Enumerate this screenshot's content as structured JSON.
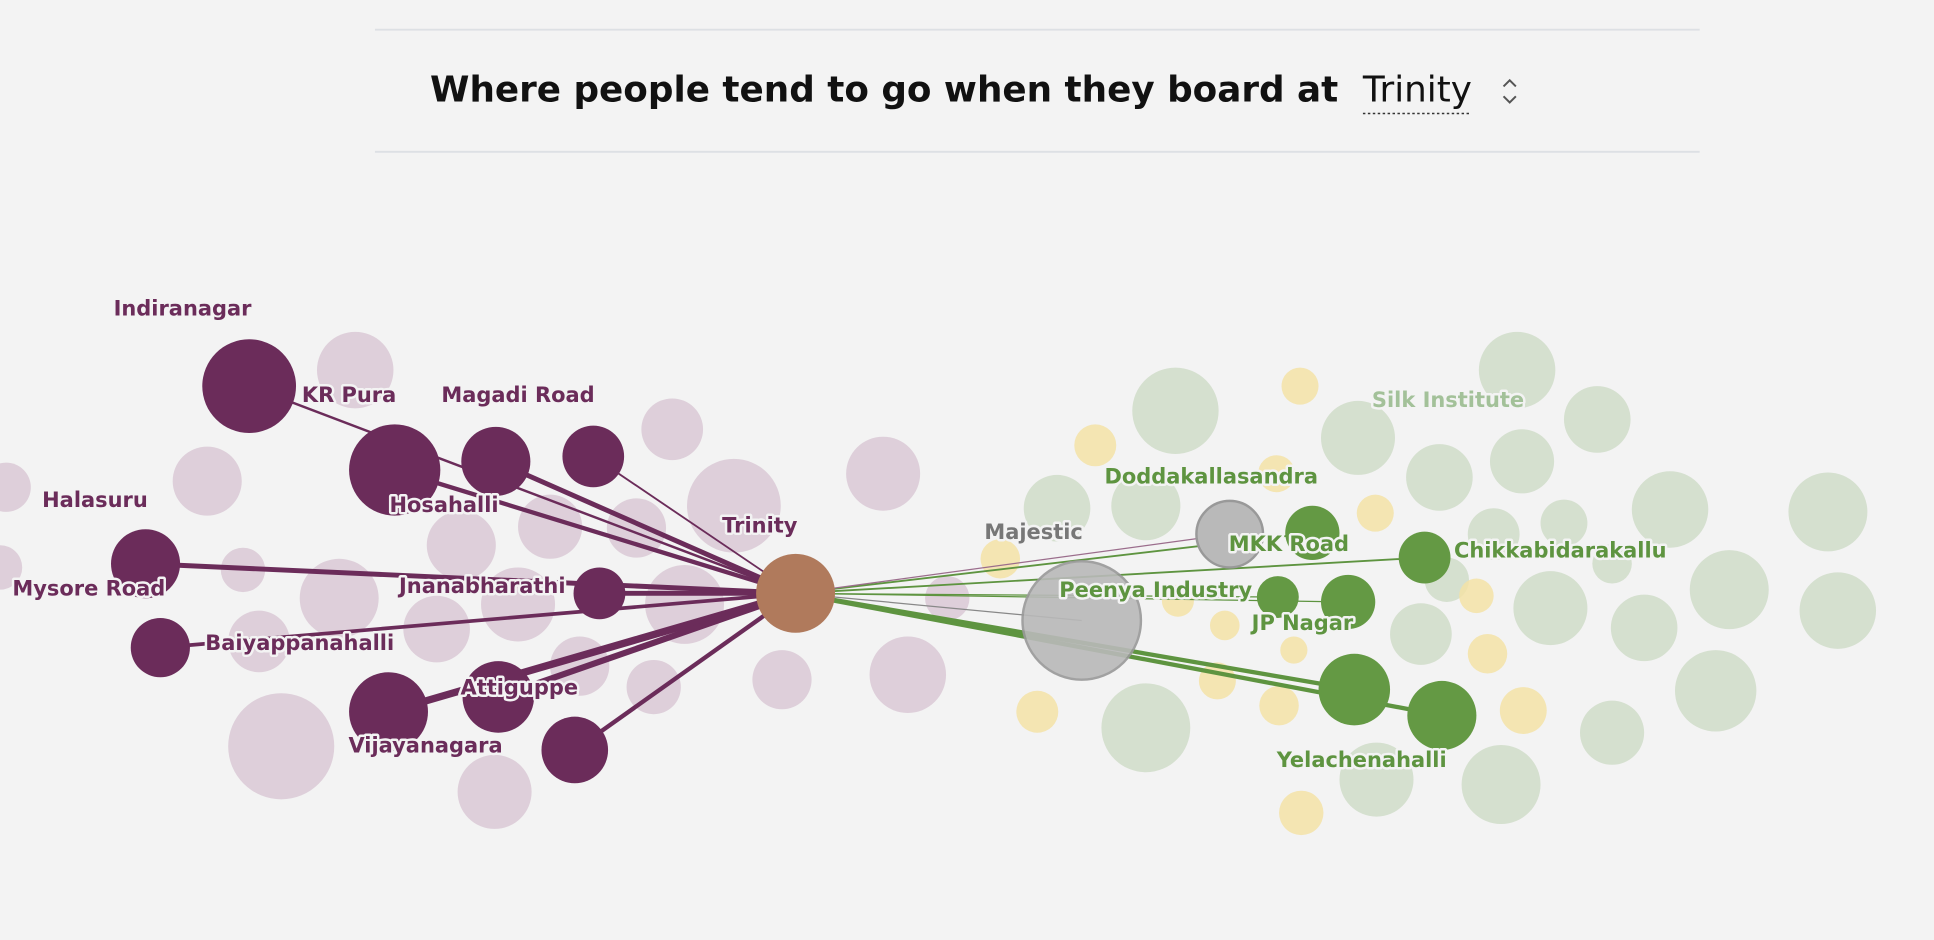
{
  "header": {
    "title": "Where people tend to go when they board at",
    "selected_station": "Trinity"
  },
  "network": {
    "origin": {
      "label": "Trinity",
      "color": "#6b2c5a"
    },
    "nodes": [
      {
        "label": "Indiranagar",
        "color": "#6b2c5a"
      },
      {
        "label": "KR Pura",
        "color": "#6b2c5a"
      },
      {
        "label": "Magadi Road",
        "color": "#6b2c5a"
      },
      {
        "label": "Halasuru",
        "color": "#6b2c5a"
      },
      {
        "label": "Hosahalli",
        "color": "#6b2c5a"
      },
      {
        "label": "Mysore Road",
        "color": "#6b2c5a"
      },
      {
        "label": "Jnanabharathi",
        "color": "#6b2c5a"
      },
      {
        "label": "Baiyappanahalli",
        "color": "#6b2c5a"
      },
      {
        "label": "Attiguppe",
        "color": "#6b2c5a"
      },
      {
        "label": "Vijayanagara",
        "color": "#6b2c5a"
      },
      {
        "label": "Majestic",
        "color": "#777777"
      },
      {
        "label": "Doddakallasandra",
        "color": "#5e9440"
      },
      {
        "label": "MKK Road",
        "color": "#5e9440"
      },
      {
        "label": "Chikkabidarakallu",
        "color": "#5e9440"
      },
      {
        "label": "Peenya Industry",
        "color": "#5e9440"
      },
      {
        "label": "JP Nagar",
        "color": "#5e9440"
      },
      {
        "label": "Yelachenahalli",
        "color": "#5e9440"
      },
      {
        "label": "Silk Institute",
        "color": "#a3c199"
      }
    ]
  }
}
